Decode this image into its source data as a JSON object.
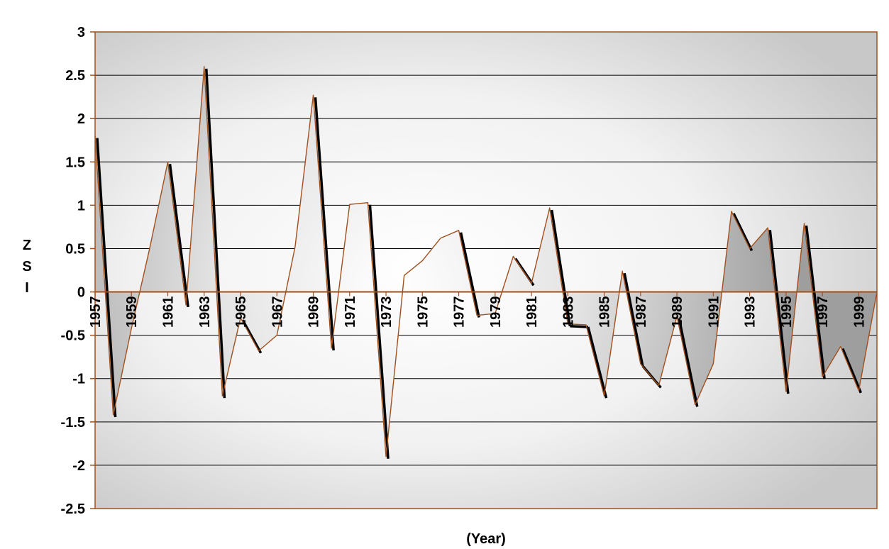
{
  "chart_data": {
    "type": "area",
    "title": "",
    "xlabel": "(Year)",
    "ylabel_lines": [
      "Z",
      "S",
      "I"
    ],
    "ylim": [
      -2.5,
      3
    ],
    "yticks": [
      3,
      2.5,
      2,
      1.5,
      1,
      0.5,
      0,
      -0.5,
      -1,
      -1.5,
      -2,
      -2.5
    ],
    "ytick_labels": [
      "3",
      "2.5",
      "2",
      "1.5",
      "1",
      "0.5",
      "0",
      "-0.5",
      "-1",
      "-1.5",
      "-2",
      "-2.5"
    ],
    "xlim": [
      1957,
      2000
    ],
    "xtick_labels": [
      "1957",
      "1959",
      "1961",
      "1963",
      "1965",
      "1967",
      "1969",
      "1971",
      "1973",
      "1975",
      "1977",
      "1979",
      "1981",
      "1983",
      "1985",
      "1987",
      "1989",
      "1991",
      "1993",
      "1995",
      "1997",
      "1999"
    ],
    "grid": true,
    "series": [
      {
        "x": [
          1957,
          1958,
          1959,
          1960,
          1961,
          1962,
          1963,
          1964,
          1965,
          1966,
          1967,
          1968,
          1969,
          1970,
          1971,
          1972,
          1973,
          1974,
          1975,
          1976,
          1977,
          1978,
          1979,
          1980,
          1981,
          1982,
          1983,
          1984,
          1985,
          1986,
          1987,
          1988,
          1989,
          1990,
          1991,
          1992,
          1993,
          1994,
          1995,
          1996,
          1997,
          1998,
          1999,
          2000
        ],
        "values": [
          1.8,
          -1.42,
          -0.42,
          0.5,
          1.5,
          -0.15,
          2.6,
          -1.2,
          -0.3,
          -0.68,
          -0.5,
          0.52,
          2.27,
          -0.65,
          1.01,
          1.03,
          -1.9,
          0.19,
          0.36,
          0.62,
          0.71,
          -0.27,
          -0.25,
          0.41,
          0.1,
          0.97,
          -0.37,
          -0.38,
          -1.2,
          0.24,
          -0.83,
          -1.08,
          -0.28,
          -1.3,
          -0.83,
          0.93,
          0.5,
          0.74,
          -1.15,
          0.79,
          -0.98,
          -0.63,
          -1.14,
          0.0
        ]
      }
    ]
  }
}
